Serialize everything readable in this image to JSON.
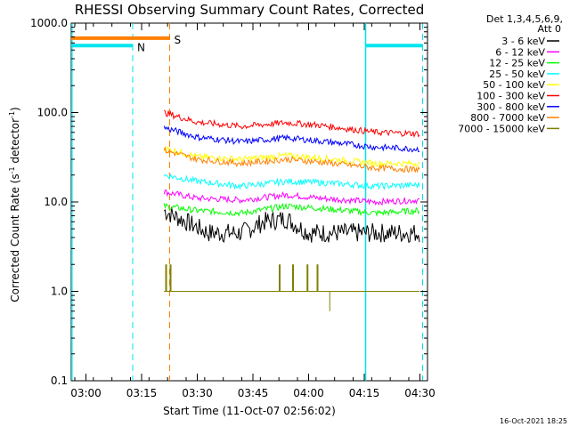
{
  "chart_data": {
    "type": "line",
    "title": "RHESSI Observing Summary Count Rates, Corrected",
    "ylabel_main": "Corrected Count Rate (s",
    "ylabel_exp1": "-1",
    "ylabel_mid": " detector",
    "ylabel_exp2": "-1",
    "ylabel_end": ")",
    "xlabel": "Start Time (11-Oct-07 02:56:02)",
    "timestamp": "16-Oct-2021 18:25",
    "y_scale": "log",
    "ylim": [
      0.1,
      1000
    ],
    "xlim": [
      "02:56",
      "04:32"
    ],
    "ytick_labels": [
      "0.1",
      "1.0",
      "10.0",
      "100.0",
      "1000.0"
    ],
    "ytick_values": [
      0.1,
      1,
      10,
      100,
      1000
    ],
    "xtick_labels": [
      "03:00",
      "03:15",
      "03:30",
      "03:45",
      "04:00",
      "04:15",
      "04:30"
    ],
    "xtick_values": [
      3.0,
      3.25,
      3.5,
      3.75,
      4.0,
      4.25,
      4.5
    ],
    "legend_title_1": "Det 1,3,4,5,6,9,",
    "legend_title_2": "Att 0",
    "legend_placement": "right",
    "data_start_time": "03:21",
    "series": [
      {
        "name": "3 - 6 keV",
        "color": "#000000",
        "values_at": [
          [
            3.35,
            8
          ],
          [
            3.45,
            6
          ],
          [
            3.55,
            4.5
          ],
          [
            3.7,
            4.5
          ],
          [
            3.8,
            6
          ],
          [
            3.9,
            6.5
          ],
          [
            4.0,
            4.5
          ],
          [
            4.3,
            4.5
          ],
          [
            4.5,
            4.5
          ]
        ]
      },
      {
        "name": "6 - 12 keV",
        "color": "#ff00ff",
        "values_at": [
          [
            3.35,
            13
          ],
          [
            3.5,
            11
          ],
          [
            3.7,
            10.5
          ],
          [
            3.9,
            12
          ],
          [
            4.05,
            11
          ],
          [
            4.3,
            10
          ],
          [
            4.5,
            10.5
          ]
        ]
      },
      {
        "name": "12 - 25 keV",
        "color": "#00ff00",
        "values_at": [
          [
            3.35,
            9
          ],
          [
            3.5,
            8
          ],
          [
            3.7,
            7.5
          ],
          [
            3.9,
            9
          ],
          [
            4.05,
            8.5
          ],
          [
            4.3,
            7.5
          ],
          [
            4.5,
            8
          ]
        ]
      },
      {
        "name": "25 - 50 keV",
        "color": "#00ffff",
        "values_at": [
          [
            3.35,
            20
          ],
          [
            3.5,
            17
          ],
          [
            3.7,
            15
          ],
          [
            3.9,
            17
          ],
          [
            4.05,
            16.5
          ],
          [
            4.3,
            15
          ],
          [
            4.5,
            15.5
          ]
        ]
      },
      {
        "name": "50 - 100 keV",
        "color": "#ffff00",
        "values_at": [
          [
            3.35,
            40
          ],
          [
            3.5,
            32
          ],
          [
            3.7,
            30
          ],
          [
            3.9,
            33
          ],
          [
            4.05,
            31
          ],
          [
            4.3,
            27
          ],
          [
            4.5,
            27
          ]
        ]
      },
      {
        "name": "100 - 300 keV",
        "color": "#ff0000",
        "values_at": [
          [
            3.35,
            100
          ],
          [
            3.5,
            78
          ],
          [
            3.7,
            70
          ],
          [
            3.9,
            77
          ],
          [
            4.05,
            72
          ],
          [
            4.3,
            60
          ],
          [
            4.5,
            58
          ]
        ]
      },
      {
        "name": "300 - 800 keV",
        "color": "#0000ff",
        "values_at": [
          [
            3.35,
            68
          ],
          [
            3.5,
            53
          ],
          [
            3.7,
            47
          ],
          [
            3.9,
            52
          ],
          [
            4.05,
            48
          ],
          [
            4.3,
            41
          ],
          [
            4.5,
            39
          ]
        ]
      },
      {
        "name": "800 - 7000 keV",
        "color": "#ff8000",
        "values_at": [
          [
            3.35,
            38
          ],
          [
            3.5,
            30
          ],
          [
            3.7,
            27
          ],
          [
            3.9,
            30
          ],
          [
            4.05,
            28
          ],
          [
            4.3,
            24
          ],
          [
            4.5,
            23
          ]
        ]
      },
      {
        "name": "7000 - 15000 keV",
        "color": "#808000",
        "values_at": [
          [
            3.35,
            1.0
          ],
          [
            3.5,
            1.0
          ],
          [
            3.7,
            1.0
          ],
          [
            3.9,
            1.0
          ],
          [
            4.05,
            1.0
          ],
          [
            4.3,
            1.0
          ],
          [
            4.5,
            1.0
          ]
        ]
      }
    ],
    "flags": [
      {
        "label": "N",
        "color": "#00e5ee",
        "level": 560,
        "from": 2.934,
        "to": 3.21
      },
      {
        "label": "S",
        "color": "#ff8000",
        "level": 680,
        "from": 2.934,
        "to": 3.376
      },
      {
        "label": "",
        "color": "#00e5ee",
        "level": 560,
        "from": 4.256,
        "to": 4.512
      }
    ]
  }
}
